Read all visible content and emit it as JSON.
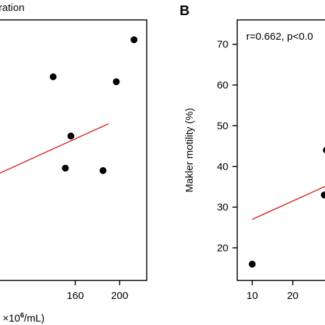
{
  "chart_data": [
    {
      "panel": "A",
      "type": "scatter",
      "title": "tration",
      "xlabel": "×10",
      "xlabel_sup": "6",
      "xlabel_suffix": "/mL)",
      "xlabel_prefix": "",
      "xticks": [
        160,
        200
      ],
      "xlim": [
        92,
        222
      ],
      "ylim": [
        0,
        100
      ],
      "points": [
        {
          "x": 140,
          "y": 80
        },
        {
          "x": 213,
          "y": 95
        },
        {
          "x": 156,
          "y": 56
        },
        {
          "x": 151,
          "y": 43
        },
        {
          "x": 185,
          "y": 42
        },
        {
          "x": 197,
          "y": 78
        }
      ],
      "fit_line": {
        "x": [
          92,
          190
        ],
        "y": [
          41,
          61
        ]
      },
      "point_color": "#000000",
      "line_color": "#d62728"
    },
    {
      "panel": "B",
      "type": "scatter",
      "panel_label": "B",
      "annotation": "r=0.662, p<0.0",
      "ylabel": "Makler motility (%)",
      "yticks": [
        20,
        30,
        40,
        50,
        60,
        70
      ],
      "ylim": [
        12,
        76
      ],
      "xticks": [
        10,
        20
      ],
      "xlim": [
        6.3,
        30
      ],
      "points": [
        {
          "x": 10,
          "y": 16
        },
        {
          "x": 27.8,
          "y": 33
        },
        {
          "x": 28.3,
          "y": 44
        }
      ],
      "fit_line": {
        "x": [
          10,
          30
        ],
        "y": [
          27,
          36
        ]
      },
      "point_color": "#000000",
      "line_color": "#d62728"
    }
  ]
}
